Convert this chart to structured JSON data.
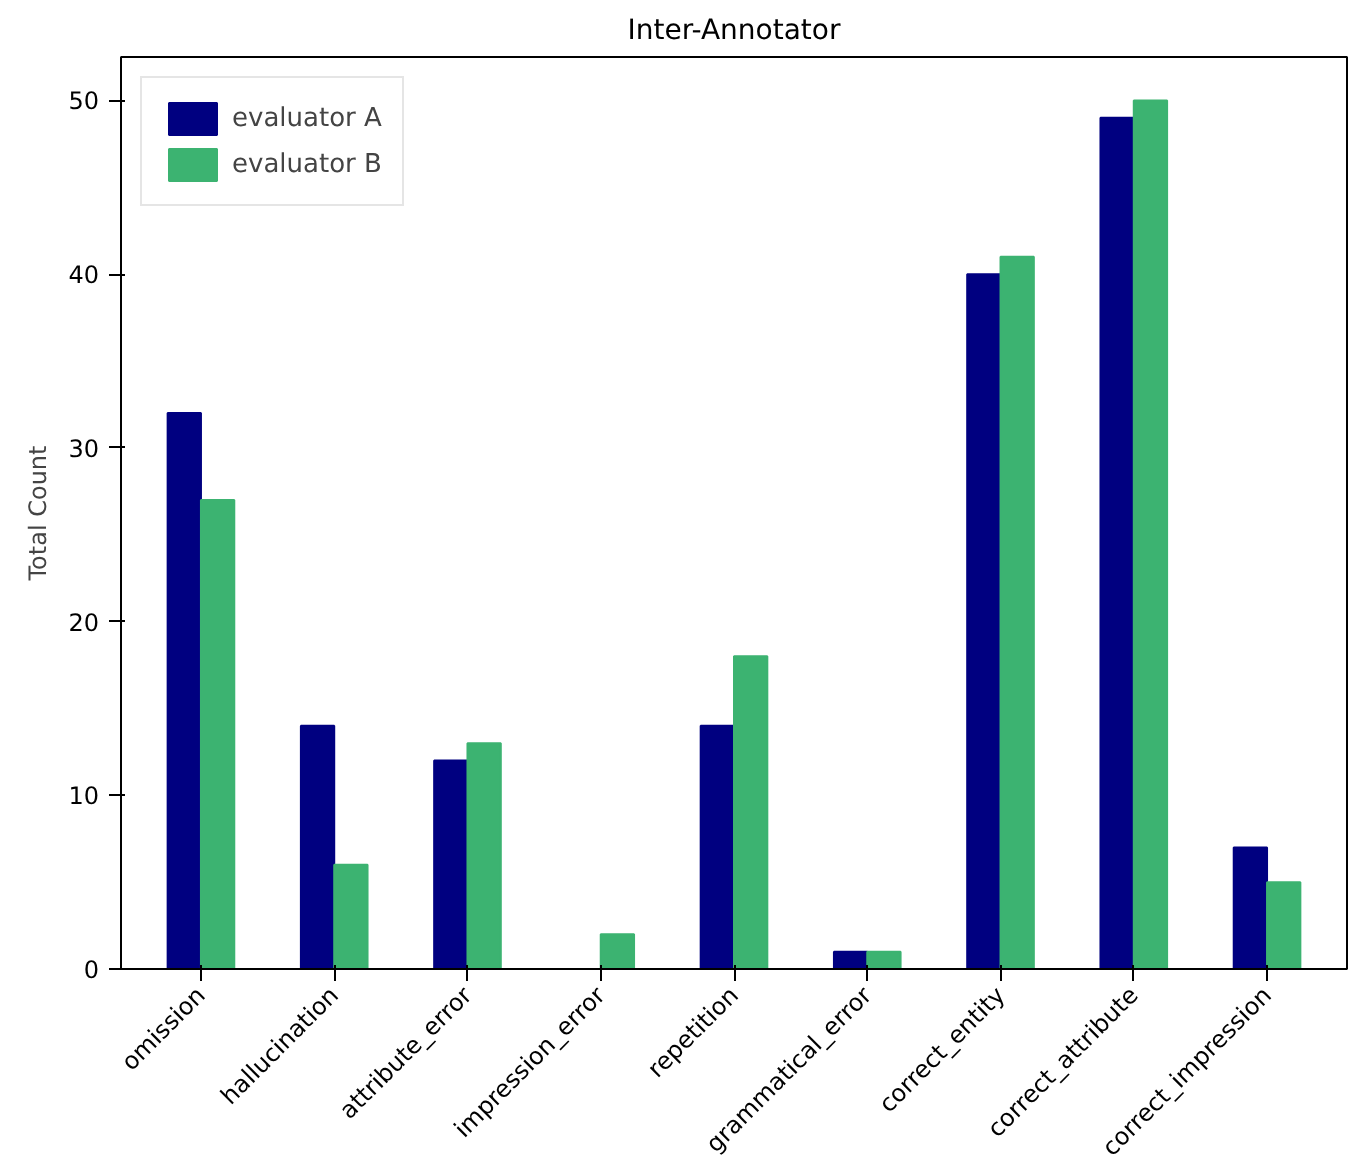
{
  "chart_data": {
    "type": "bar",
    "title": "Inter-Annotator",
    "ylabel": "Total Count",
    "categories": [
      "omission",
      "hallucination",
      "attribute_error",
      "impression_error",
      "repetition",
      "grammatical_error",
      "correct_entity",
      "correct_attribute",
      "correct_impression"
    ],
    "series": [
      {
        "name": "evaluator A",
        "color": "#000080",
        "values": [
          32,
          14,
          12,
          0,
          14,
          1,
          40,
          49,
          7
        ]
      },
      {
        "name": "evaluator B",
        "color": "#3cb371",
        "values": [
          27,
          6,
          13,
          2,
          18,
          1,
          41,
          50,
          5
        ]
      }
    ],
    "ylim": [
      0,
      52.5
    ],
    "yticks": [
      0,
      10,
      20,
      30,
      40,
      50
    ],
    "grid": false,
    "legend": "top left"
  }
}
